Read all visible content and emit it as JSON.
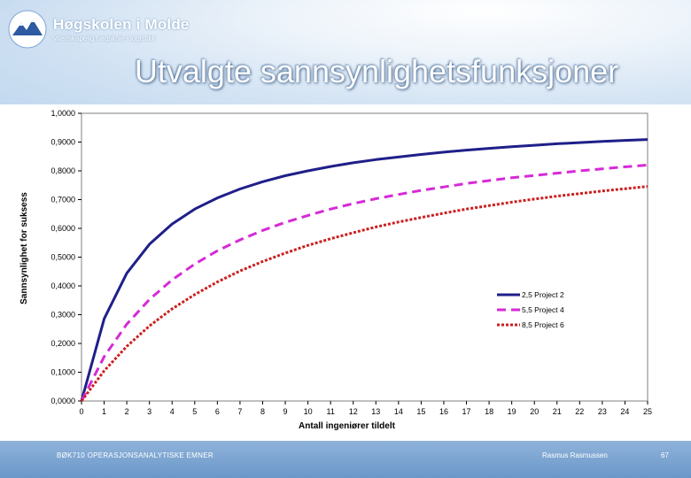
{
  "header": {
    "logo_name": "Høgskolen i Molde",
    "logo_sub": "vitenskapelig høgskole i logistikk",
    "title": "Utvalgte sannsynlighetsfunksjoner"
  },
  "footer": {
    "course": "BØK710 OPERASJONSANALYTISKE EMNER",
    "author": "Rasmus Rasmussen",
    "page": "67"
  },
  "colors": {
    "series1": "#1f1f8a",
    "series2": "#d62ad6",
    "series3": "#cc1f1f"
  },
  "chart_data": {
    "type": "line",
    "title": "",
    "xlabel": "Antall ingeniører tildelt",
    "ylabel": "Sannsynlighet for suksess",
    "xlim": [
      0,
      25
    ],
    "ylim": [
      0,
      1
    ],
    "x_ticks": [
      "0",
      "1",
      "2",
      "3",
      "4",
      "5",
      "6",
      "7",
      "8",
      "9",
      "10",
      "11",
      "12",
      "13",
      "14",
      "15",
      "16",
      "17",
      "18",
      "19",
      "20",
      "21",
      "22",
      "23",
      "24",
      "25"
    ],
    "y_ticks": [
      "0,0000",
      "0,1000",
      "0,2000",
      "0,3000",
      "0,4000",
      "0,5000",
      "0,6000",
      "0,7000",
      "0,8000",
      "0,9000",
      "1,0000"
    ],
    "legend_position": "right",
    "series": [
      {
        "name": "2,5 Project 2",
        "style": "solid",
        "x": [
          0,
          1,
          2,
          3,
          4,
          5,
          6,
          7,
          8,
          9,
          10,
          11,
          12,
          13,
          14,
          15,
          16,
          17,
          18,
          19,
          20,
          21,
          22,
          23,
          24,
          25
        ],
        "values": [
          0,
          0.286,
          0.444,
          0.545,
          0.615,
          0.667,
          0.706,
          0.737,
          0.762,
          0.783,
          0.8,
          0.815,
          0.828,
          0.839,
          0.848,
          0.857,
          0.865,
          0.872,
          0.878,
          0.884,
          0.889,
          0.894,
          0.898,
          0.902,
          0.906,
          0.909
        ]
      },
      {
        "name": "5,5 Project 4",
        "style": "dashed",
        "x": [
          0,
          1,
          2,
          3,
          4,
          5,
          6,
          7,
          8,
          9,
          10,
          11,
          12,
          13,
          14,
          15,
          16,
          17,
          18,
          19,
          20,
          21,
          22,
          23,
          24,
          25
        ],
        "values": [
          0,
          0.154,
          0.267,
          0.353,
          0.421,
          0.476,
          0.522,
          0.56,
          0.593,
          0.621,
          0.645,
          0.667,
          0.686,
          0.703,
          0.718,
          0.732,
          0.744,
          0.756,
          0.766,
          0.776,
          0.784,
          0.792,
          0.8,
          0.807,
          0.814,
          0.82
        ]
      },
      {
        "name": "8,5 Project 6",
        "style": "dotted",
        "x": [
          0,
          1,
          2,
          3,
          4,
          5,
          6,
          7,
          8,
          9,
          10,
          11,
          12,
          13,
          14,
          15,
          16,
          17,
          18,
          19,
          20,
          21,
          22,
          23,
          24,
          25
        ],
        "values": [
          0,
          0.105,
          0.19,
          0.261,
          0.32,
          0.37,
          0.414,
          0.452,
          0.485,
          0.514,
          0.541,
          0.564,
          0.585,
          0.605,
          0.622,
          0.638,
          0.653,
          0.667,
          0.679,
          0.691,
          0.702,
          0.712,
          0.721,
          0.73,
          0.738,
          0.746
        ]
      }
    ]
  }
}
